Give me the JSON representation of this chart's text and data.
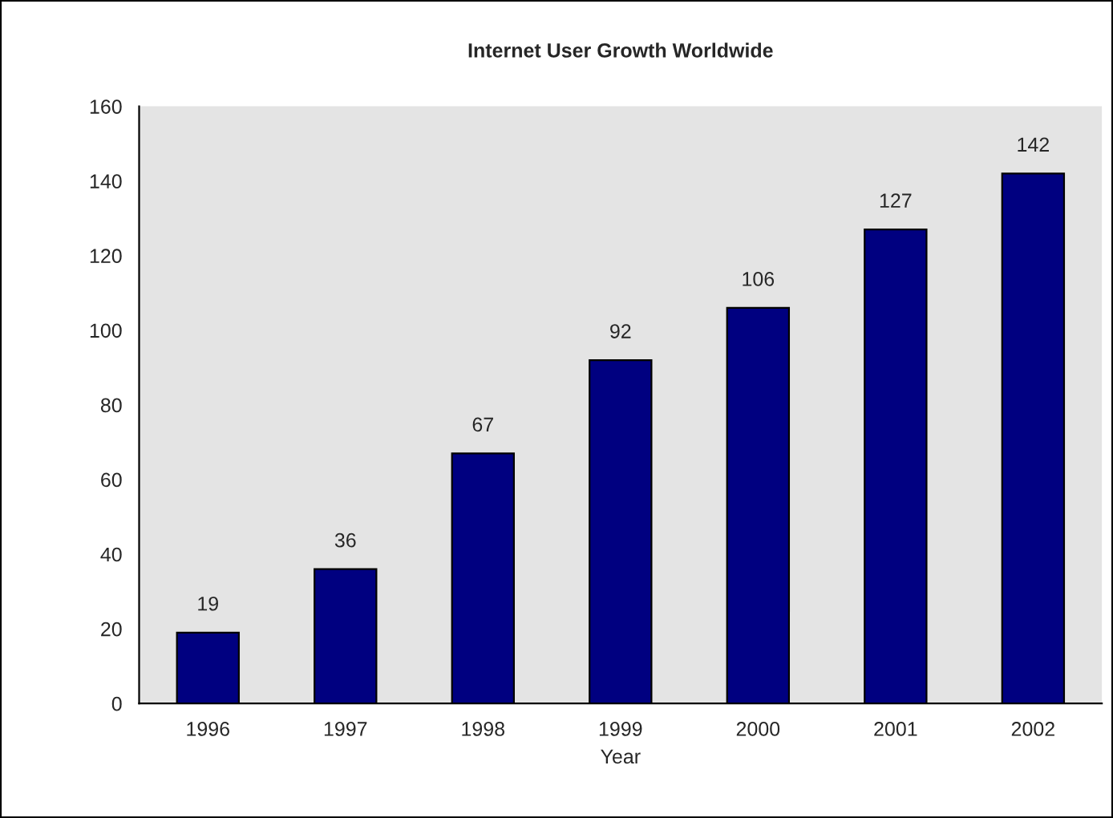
{
  "chart_data": {
    "type": "bar",
    "title": "Internet User Growth Worldwide",
    "xlabel": "Year",
    "categories": [
      "1996",
      "1997",
      "1998",
      "1999",
      "2000",
      "2001",
      "2002"
    ],
    "values": [
      19,
      36,
      67,
      92,
      106,
      127,
      142
    ],
    "color": "#000080",
    "ylim": [
      0,
      160
    ],
    "yticks": [
      0,
      20,
      40,
      60,
      80,
      100,
      120,
      140,
      160
    ],
    "data_labels": true,
    "grid": false,
    "legend": false
  }
}
